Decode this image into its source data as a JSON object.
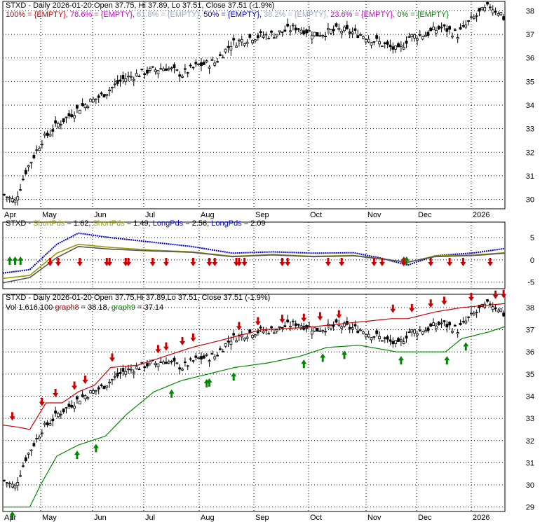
{
  "chart_data": [
    {
      "type": "candlestick",
      "title": "STXD - Daily 2026-01-20 Open 37.75, Hi 37.89, Lo 37.51, Close 37.51 (-1.9%)",
      "legend": [
        {
          "text": "100% = {EMPTY},",
          "color": "#cc0000"
        },
        {
          "text": "78.6% = {EMPTY},",
          "color": "#cc00cc"
        },
        {
          "text": "61.8% = {EMPTY},",
          "color": "#99aacc"
        },
        {
          "text": "50% = {EMPTY},",
          "color": "#0000cc"
        },
        {
          "text": "38.2% = {EMPTY},",
          "color": "#99aacc"
        },
        {
          "text": "23.6% = {EMPTY},",
          "color": "#cc00cc"
        },
        {
          "text": "0% = {EMPTY}",
          "color": "#008800"
        }
      ],
      "x_ticks": [
        "Apr",
        "May",
        "Jun",
        "Jul",
        "Aug",
        "Sep",
        "Oct",
        "Nov",
        "Dec",
        "2026"
      ],
      "y_ticks": [
        "30",
        "31",
        "32",
        "33",
        "34",
        "35",
        "36",
        "37",
        "38"
      ],
      "ylim": [
        29.6,
        38.4
      ],
      "close_path": [
        [
          0,
          30.2
        ],
        [
          4,
          29.9
        ],
        [
          8,
          31.2
        ],
        [
          14,
          32.5
        ],
        [
          20,
          33.2
        ],
        [
          28,
          33.9
        ],
        [
          36,
          34.4
        ],
        [
          44,
          35.1
        ],
        [
          52,
          35.4
        ],
        [
          60,
          35.6
        ],
        [
          66,
          35.3
        ],
        [
          72,
          35.7
        ],
        [
          78,
          35.8
        ],
        [
          84,
          36.6
        ],
        [
          92,
          36.9
        ],
        [
          100,
          37.0
        ],
        [
          108,
          37.3
        ],
        [
          116,
          37.0
        ],
        [
          124,
          37.2
        ],
        [
          132,
          37.0
        ],
        [
          140,
          36.6
        ],
        [
          146,
          36.3
        ],
        [
          150,
          36.9
        ],
        [
          156,
          37.0
        ],
        [
          162,
          37.3
        ],
        [
          168,
          37.0
        ],
        [
          172,
          37.5
        ],
        [
          176,
          37.9
        ],
        [
          180,
          38.2
        ],
        [
          184,
          37.9
        ],
        [
          186,
          37.5
        ]
      ],
      "last_close": 37.51
    },
    {
      "type": "line",
      "title": "STXD - ShortPds = 1.62, ShortPds = 1.49, LongPds = 2.56, LongPds = 2.09",
      "legend": [
        {
          "text": "STXD - ",
          "color": "#000000"
        },
        {
          "text": "ShortPds",
          "color": "#999900"
        },
        {
          "text": " = 1.62, ",
          "color": "#000000"
        },
        {
          "text": "ShortPds",
          "color": "#999900"
        },
        {
          "text": " = 1.49, ",
          "color": "#000000"
        },
        {
          "text": "LongPds",
          "color": "#0000cc"
        },
        {
          "text": " = 2.56, ",
          "color": "#000000"
        },
        {
          "text": "LongPds",
          "color": "#0000cc"
        },
        {
          "text": " = 2.09",
          "color": "#000000"
        }
      ],
      "y_ticks": [
        "5",
        "0",
        "-5"
      ],
      "ylim": [
        -6.5,
        8.5
      ],
      "series": [
        {
          "color": "#0000cc",
          "values": [
            [
              0,
              -3.0
            ],
            [
              10,
              -2.2
            ],
            [
              20,
              3.5
            ],
            [
              28,
              6.0
            ],
            [
              40,
              5.0
            ],
            [
              55,
              4.0
            ],
            [
              70,
              3.0
            ],
            [
              85,
              1.5
            ],
            [
              100,
              1.8
            ],
            [
              115,
              1.5
            ],
            [
              130,
              1.6
            ],
            [
              140,
              0.4
            ],
            [
              150,
              -1.2
            ],
            [
              160,
              0.9
            ],
            [
              175,
              1.6
            ],
            [
              186,
              2.56
            ]
          ]
        },
        {
          "color": "#999900",
          "values": [
            [
              0,
              -4.2
            ],
            [
              10,
              -3.5
            ],
            [
              20,
              1.5
            ],
            [
              28,
              3.5
            ],
            [
              40,
              2.8
            ],
            [
              55,
              2.2
            ],
            [
              70,
              1.8
            ],
            [
              85,
              0.8
            ],
            [
              100,
              1.2
            ],
            [
              115,
              0.8
            ],
            [
              130,
              1.0
            ],
            [
              140,
              0.3
            ],
            [
              150,
              -0.6
            ],
            [
              160,
              0.9
            ],
            [
              175,
              1.1
            ],
            [
              186,
              1.62
            ]
          ]
        },
        {
          "color": "#555555",
          "values": [
            [
              0,
              -5.2
            ],
            [
              10,
              -4.0
            ],
            [
              20,
              0.5
            ],
            [
              28,
              3.0
            ],
            [
              40,
              2.4
            ],
            [
              55,
              2.0
            ],
            [
              70,
              1.7
            ],
            [
              85,
              0.7
            ],
            [
              100,
              1.1
            ],
            [
              115,
              0.7
            ],
            [
              130,
              0.9
            ],
            [
              140,
              0.2
            ],
            [
              150,
              -0.5
            ],
            [
              160,
              0.7
            ],
            [
              175,
              1.0
            ],
            [
              186,
              1.49
            ]
          ]
        }
      ],
      "up_arrows": [
        1,
        3,
        5,
        147,
        148
      ],
      "down_arrows": [
        17,
        20,
        28,
        38,
        39,
        45,
        46,
        55,
        60,
        70,
        76,
        78,
        86,
        87,
        89,
        103,
        105,
        120,
        125,
        137,
        140,
        148,
        158,
        165,
        170,
        180
      ]
    },
    {
      "type": "candlestick",
      "title": "STXD - Daily 2026-01-20 Open 37.75,Hi 37.89,Lo 37.51, Close 37.51 (-1.9%)",
      "legend": [
        {
          "text": "Vol 1,616,100 ",
          "color": "#000000"
        },
        {
          "text": "graph8",
          "color": "#cc0000"
        },
        {
          "text": " = 38.18, ",
          "color": "#000000"
        },
        {
          "text": "graph9",
          "color": "#008800"
        },
        {
          "text": " = 37.14",
          "color": "#000000"
        }
      ],
      "y_ticks": [
        "29",
        "30",
        "31",
        "32",
        "33",
        "34",
        "35",
        "36",
        "37",
        "38"
      ],
      "ylim": [
        28.8,
        38.6
      ],
      "graph8_last": 38.18,
      "graph9_last": 37.14,
      "graph8": [
        [
          0,
          32.7
        ],
        [
          6,
          32.6
        ],
        [
          10,
          32.5
        ],
        [
          16,
          33.7
        ],
        [
          22,
          33.7
        ],
        [
          28,
          34.2
        ],
        [
          34,
          34.5
        ],
        [
          40,
          35.3
        ],
        [
          50,
          35.4
        ],
        [
          60,
          35.8
        ],
        [
          70,
          36.2
        ],
        [
          80,
          36.5
        ],
        [
          96,
          37.0
        ],
        [
          112,
          37.1
        ],
        [
          128,
          37.3
        ],
        [
          144,
          37.5
        ],
        [
          150,
          37.5
        ],
        [
          160,
          37.8
        ],
        [
          170,
          38.0
        ],
        [
          186,
          38.18
        ]
      ],
      "graph9": [
        [
          0,
          29.0
        ],
        [
          10,
          29.0
        ],
        [
          14,
          30.0
        ],
        [
          20,
          31.3
        ],
        [
          28,
          31.8
        ],
        [
          38,
          32.2
        ],
        [
          46,
          33.2
        ],
        [
          56,
          34.2
        ],
        [
          66,
          34.7
        ],
        [
          76,
          35.0
        ],
        [
          86,
          35.3
        ],
        [
          98,
          35.5
        ],
        [
          110,
          35.8
        ],
        [
          120,
          36.2
        ],
        [
          132,
          36.3
        ],
        [
          146,
          36.0
        ],
        [
          164,
          36.0
        ],
        [
          170,
          36.6
        ],
        [
          180,
          36.9
        ],
        [
          186,
          37.14
        ]
      ],
      "up_arrows": [
        3,
        27,
        34,
        62,
        75,
        76,
        85,
        111,
        118,
        126,
        147,
        164,
        171
      ],
      "down_arrows": [
        3,
        14,
        19,
        26,
        30,
        40,
        57,
        60,
        66,
        70,
        87,
        94,
        103,
        111,
        117,
        124,
        144,
        151,
        158,
        163,
        173,
        182,
        185
      ]
    }
  ]
}
